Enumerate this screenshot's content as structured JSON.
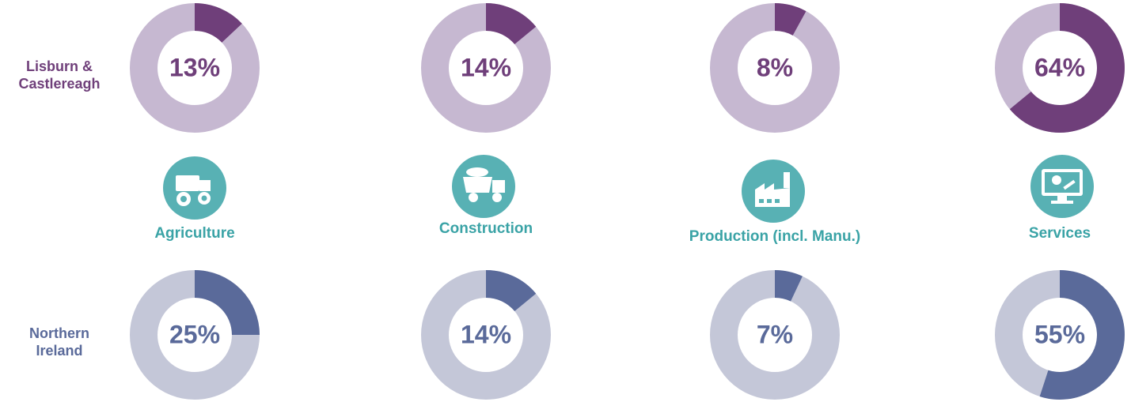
{
  "rows": [
    "Lisburn & Castlereagh",
    "Northern Ireland"
  ],
  "sectors": [
    "Agriculture",
    "Construction",
    "Production (incl. Manu.)",
    "Services"
  ],
  "chart_data": [
    {
      "type": "donut",
      "values": [
        13
      ],
      "value_labels": [
        "13%"
      ],
      "color": "#6f3f7a",
      "track_color": "#c6b8d1"
    },
    {
      "type": "donut",
      "values": [
        14
      ],
      "value_labels": [
        "14%"
      ],
      "color": "#6f3f7a",
      "track_color": "#c6b8d1"
    },
    {
      "type": "donut",
      "values": [
        8
      ],
      "value_labels": [
        "8%"
      ],
      "color": "#6f3f7a",
      "track_color": "#c6b8d1"
    },
    {
      "type": "donut",
      "values": [
        64
      ],
      "value_labels": [
        "64%"
      ],
      "color": "#6f3f7a",
      "track_color": "#c6b8d1"
    },
    {
      "type": "donut",
      "values": [
        25
      ],
      "value_labels": [
        "25%"
      ],
      "color": "#5a6a9a",
      "track_color": "#c4c7d8"
    },
    {
      "type": "donut",
      "values": [
        14
      ],
      "value_labels": [
        "14%"
      ],
      "color": "#5a6a9a",
      "track_color": "#c4c7d8"
    },
    {
      "type": "donut",
      "values": [
        7
      ],
      "value_labels": [
        "7%"
      ],
      "color": "#5a6a9a",
      "track_color": "#c4c7d8"
    },
    {
      "type": "donut",
      "values": [
        55
      ],
      "value_labels": [
        "55%"
      ],
      "color": "#5a6a9a",
      "track_color": "#c4c7d8"
    }
  ]
}
